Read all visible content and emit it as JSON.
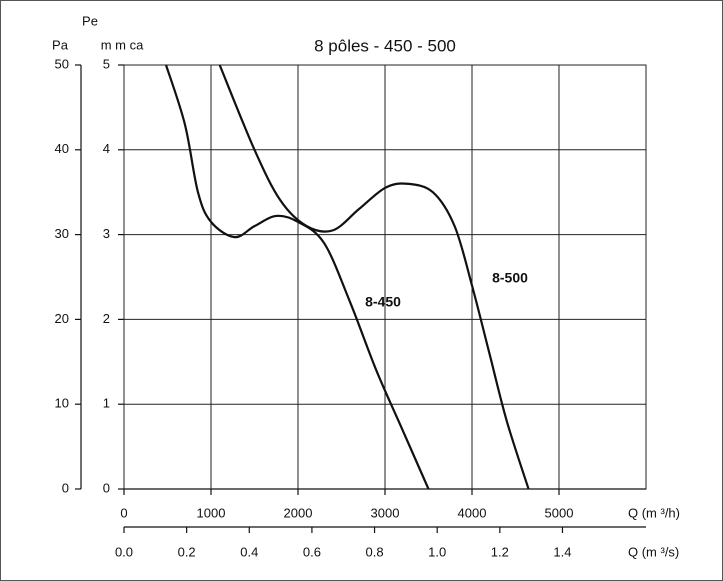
{
  "chart_data": {
    "type": "line",
    "title": "8 pôles - 450 - 500",
    "y_label": "Pa",
    "y2_label_top": "Pe",
    "y2_label": "m m ca",
    "x_label": "Q (m ³/h)",
    "x2_label": "Q (m ³/s)",
    "xlim": [
      0,
      6000
    ],
    "xticks": [
      0,
      1000,
      2000,
      3000,
      4000,
      5000
    ],
    "x2lim": [
      0,
      1.6667
    ],
    "x2ticks": [
      {
        "value": 0,
        "label": "0.0"
      },
      {
        "value": 0.2,
        "label": "0.2"
      },
      {
        "value": 0.4,
        "label": "0.4"
      },
      {
        "value": 0.6,
        "label": "0.6"
      },
      {
        "value": 0.8,
        "label": "0.8"
      },
      {
        "value": 1.0,
        "label": "1.0"
      },
      {
        "value": 1.2,
        "label": "1.2"
      },
      {
        "value": 1.4,
        "label": "1.4"
      }
    ],
    "ylim": [
      0,
      50
    ],
    "yticks": [
      0,
      10,
      20,
      30,
      40,
      50
    ],
    "y2lim": [
      0,
      5
    ],
    "y2ticks": [
      0,
      1,
      2,
      3,
      4,
      5
    ],
    "grid": true,
    "series": [
      {
        "name": "8-450",
        "color": "#111111",
        "x": [
          483,
          700,
          850,
          1000,
          1270,
          1500,
          1750,
          2000,
          2300,
          2600,
          2900,
          3200,
          3500
        ],
        "values": [
          50,
          43,
          35,
          31.5,
          29.7,
          31,
          32.2,
          31.5,
          29,
          22,
          14,
          7,
          0
        ]
      },
      {
        "name": "8-500",
        "color": "#111111",
        "x": [
          1100,
          1500,
          1800,
          2100,
          2400,
          2700,
          3000,
          3250,
          3550,
          3800,
          4000,
          4200,
          4400,
          4650
        ],
        "values": [
          50,
          40,
          34,
          31,
          30.5,
          33,
          35.5,
          36,
          35,
          31,
          24,
          16,
          8,
          0
        ]
      }
    ]
  }
}
